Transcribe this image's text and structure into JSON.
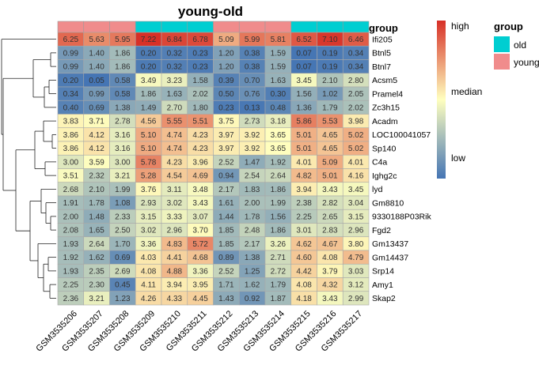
{
  "chart_data": {
    "type": "heatmap",
    "title": "young-old",
    "annotation_label": "group",
    "samples": [
      "GSM3535206",
      "GSM3535207",
      "GSM3535208",
      "GSM3535209",
      "GSM3535210",
      "GSM3535211",
      "GSM3535212",
      "GSM3535213",
      "GSM3535214",
      "GSM3535215",
      "GSM3535216",
      "GSM3535217"
    ],
    "sample_groups": [
      "young",
      "young",
      "young",
      "old",
      "old",
      "old",
      "young",
      "young",
      "young",
      "old",
      "old",
      "old"
    ],
    "genes": [
      "Ifi205",
      "Btnl5",
      "Btnl7",
      "Acsm5",
      "Pramel4",
      "Zc3h15",
      "Acadm",
      "LOC100041057",
      "Sp140",
      "C4a",
      "Ighg2c",
      "lyd",
      "Gm8810",
      "9330188P03Rik",
      "Fgd2",
      "Gm13437",
      "Gm14437",
      "Srp14",
      "Amy1",
      "Skap2"
    ],
    "values": [
      [
        6.25,
        5.63,
        5.95,
        7.22,
        6.84,
        6.78,
        5.09,
        5.99,
        5.81,
        6.52,
        7.1,
        6.46
      ],
      [
        0.99,
        1.4,
        1.86,
        0.2,
        0.32,
        0.23,
        1.2,
        0.38,
        1.59,
        0.07,
        0.19,
        0.34
      ],
      [
        0.99,
        1.4,
        1.86,
        0.2,
        0.32,
        0.23,
        1.2,
        0.38,
        1.59,
        0.07,
        0.19,
        0.34
      ],
      [
        0.2,
        0.05,
        0.58,
        3.49,
        3.23,
        1.58,
        0.39,
        0.7,
        1.63,
        3.45,
        2.1,
        2.8
      ],
      [
        0.34,
        0.99,
        0.58,
        1.86,
        1.63,
        2.02,
        0.5,
        0.76,
        0.3,
        1.56,
        1.02,
        2.05
      ],
      [
        0.4,
        0.69,
        1.38,
        1.49,
        2.7,
        1.8,
        0.23,
        0.13,
        0.48,
        1.36,
        1.79,
        2.02
      ],
      [
        3.83,
        3.71,
        2.78,
        4.56,
        5.55,
        5.51,
        3.75,
        2.73,
        3.18,
        5.86,
        5.53,
        3.98
      ],
      [
        3.86,
        4.12,
        3.16,
        5.1,
        4.74,
        4.23,
        3.97,
        3.92,
        3.65,
        5.01,
        4.65,
        5.02
      ],
      [
        3.86,
        4.12,
        3.16,
        5.1,
        4.74,
        4.23,
        3.97,
        3.92,
        3.65,
        5.01,
        4.65,
        5.02
      ],
      [
        3.0,
        3.59,
        3.0,
        5.78,
        4.23,
        3.96,
        2.52,
        1.47,
        1.92,
        4.01,
        5.09,
        4.01
      ],
      [
        3.51,
        2.32,
        3.21,
        5.28,
        4.54,
        4.69,
        0.94,
        2.54,
        2.64,
        4.82,
        5.01,
        4.16
      ],
      [
        2.68,
        2.1,
        1.99,
        3.76,
        3.11,
        3.48,
        2.17,
        1.83,
        1.86,
        3.94,
        3.43,
        3.45
      ],
      [
        1.91,
        1.78,
        1.08,
        2.93,
        3.02,
        3.43,
        1.61,
        2.0,
        1.99,
        2.38,
        2.82,
        3.04
      ],
      [
        2.0,
        1.48,
        2.33,
        3.15,
        3.33,
        3.07,
        1.44,
        1.78,
        1.56,
        2.25,
        2.65,
        3.15
      ],
      [
        2.08,
        1.65,
        2.5,
        3.02,
        2.96,
        3.7,
        1.85,
        2.48,
        1.86,
        3.01,
        2.83,
        2.96
      ],
      [
        1.93,
        2.64,
        1.7,
        3.36,
        4.83,
        5.72,
        1.85,
        2.17,
        3.26,
        4.62,
        4.67,
        3.8
      ],
      [
        1.92,
        1.62,
        0.69,
        4.03,
        4.41,
        4.68,
        0.89,
        1.38,
        2.71,
        4.6,
        4.08,
        4.79
      ],
      [
        1.93,
        2.35,
        2.69,
        4.08,
        4.88,
        3.36,
        2.52,
        1.25,
        2.72,
        4.42,
        3.79,
        3.03
      ],
      [
        2.25,
        2.3,
        0.45,
        4.11,
        3.94,
        3.95,
        1.71,
        1.62,
        1.79,
        4.08,
        4.32,
        3.12
      ],
      [
        2.36,
        3.21,
        1.23,
        4.26,
        4.33,
        4.45,
        1.43,
        0.92,
        1.87,
        4.18,
        3.43,
        2.99
      ]
    ],
    "color_scale": {
      "labels": [
        "high",
        "median",
        "low"
      ],
      "colors": [
        "#d73027",
        "#ffffbf",
        "#4575b4"
      ]
    },
    "group_legend": {
      "title": "group",
      "entries": [
        {
          "name": "old",
          "color": "#00ced1"
        },
        {
          "name": "young",
          "color": "#f08c8c"
        }
      ]
    }
  }
}
